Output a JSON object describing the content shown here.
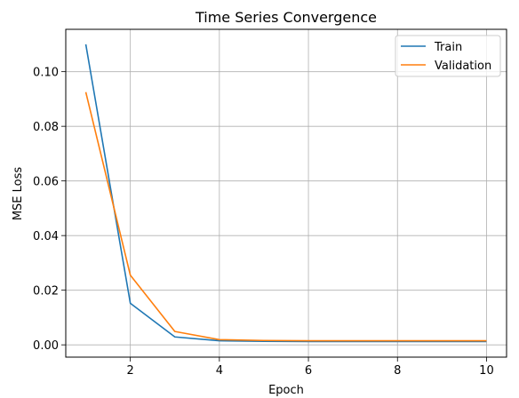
{
  "chart_data": {
    "type": "line",
    "title": "Time Series Convergence",
    "xlabel": "Epoch",
    "ylabel": "MSE Loss",
    "xlim": [
      0.55,
      10.45
    ],
    "ylim": [
      -0.0045,
      0.1155
    ],
    "xticks": [
      2,
      4,
      6,
      8,
      10
    ],
    "yticks": [
      0.0,
      0.02,
      0.04,
      0.06,
      0.08,
      0.1
    ],
    "ytick_labels": [
      "0.00",
      "0.02",
      "0.04",
      "0.06",
      "0.08",
      "0.10"
    ],
    "grid": true,
    "legend_position": "top-right",
    "x": [
      1,
      2,
      3,
      4,
      5,
      6,
      7,
      8,
      9,
      10
    ],
    "series": [
      {
        "name": "Train",
        "color": "#1f77b4",
        "values": [
          0.11,
          0.0152,
          0.0029,
          0.0015,
          0.0013,
          0.0012,
          0.0012,
          0.0012,
          0.0012,
          0.0012
        ]
      },
      {
        "name": "Validation",
        "color": "#ff7f0e",
        "values": [
          0.0925,
          0.0255,
          0.0049,
          0.0019,
          0.0016,
          0.0015,
          0.0015,
          0.0015,
          0.0015,
          0.0015
        ]
      }
    ]
  }
}
